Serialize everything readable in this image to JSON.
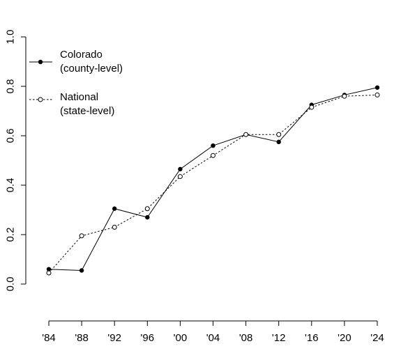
{
  "chart_data": {
    "type": "line",
    "title": "",
    "xlabel": "",
    "ylabel": "",
    "categories": [
      "'84",
      "'88",
      "'92",
      "'96",
      "'00",
      "'04",
      "'08",
      "'12",
      "'16",
      "'20",
      "'24"
    ],
    "ylim": [
      0.0,
      1.0
    ],
    "yticks": [
      "0.0",
      "0.2",
      "0.4",
      "0.6",
      "0.8",
      "1.0"
    ],
    "grid": false,
    "legend_position": "top-left",
    "series": [
      {
        "name": "Colorado\n(county-level)",
        "marker": "filled-circle",
        "line_style": "solid",
        "color": "#000000",
        "values": [
          0.06,
          0.055,
          0.305,
          0.27,
          0.465,
          0.56,
          0.605,
          0.575,
          0.725,
          0.765,
          0.795
        ]
      },
      {
        "name": "National\n(state-level)",
        "marker": "open-circle",
        "line_style": "dotted",
        "color": "#000000",
        "values": [
          0.045,
          0.195,
          0.23,
          0.305,
          0.435,
          0.52,
          0.605,
          0.605,
          0.715,
          0.76,
          0.765
        ]
      }
    ]
  }
}
